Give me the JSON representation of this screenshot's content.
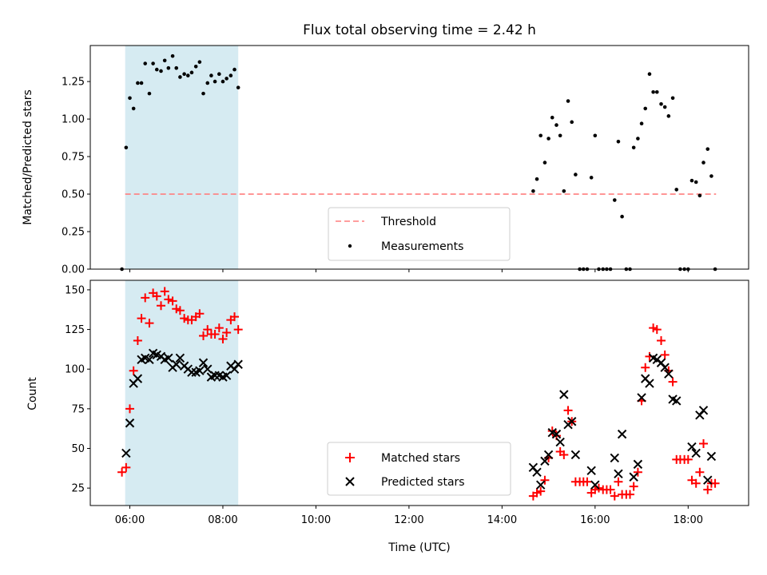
{
  "chart_data": [
    {
      "type": "scatter",
      "title": "Flux total observing time = 2.42 h",
      "xlabel": "",
      "ylabel": "Matched/Predicted stars",
      "xlim_hours": [
        5.15,
        19.3
      ],
      "ylim": [
        0,
        1.49
      ],
      "yticks": [
        0.0,
        0.25,
        0.5,
        0.75,
        1.0,
        1.25
      ],
      "ytick_labels": [
        "0.00",
        "0.25",
        "0.50",
        "0.75",
        "1.00",
        "1.25"
      ],
      "shaded_window_hours": [
        5.9,
        8.33
      ],
      "shaded_color": "#add8e6",
      "threshold": {
        "name": "Threshold",
        "value": 0.5,
        "x_start": 5.9,
        "x_end": 18.6,
        "color": "#ff7f7f"
      },
      "series": [
        {
          "name": "Measurements",
          "marker": "dot",
          "color": "#000000",
          "points": [
            [
              5.83,
              0.0
            ],
            [
              5.92,
              0.81
            ],
            [
              6.0,
              1.14
            ],
            [
              6.08,
              1.07
            ],
            [
              6.17,
              1.24
            ],
            [
              6.25,
              1.24
            ],
            [
              6.33,
              1.37
            ],
            [
              6.42,
              1.17
            ],
            [
              6.5,
              1.37
            ],
            [
              6.58,
              1.33
            ],
            [
              6.67,
              1.32
            ],
            [
              6.75,
              1.39
            ],
            [
              6.83,
              1.34
            ],
            [
              6.92,
              1.42
            ],
            [
              7.0,
              1.34
            ],
            [
              7.08,
              1.28
            ],
            [
              7.17,
              1.3
            ],
            [
              7.25,
              1.29
            ],
            [
              7.33,
              1.31
            ],
            [
              7.42,
              1.35
            ],
            [
              7.5,
              1.38
            ],
            [
              7.58,
              1.17
            ],
            [
              7.67,
              1.24
            ],
            [
              7.75,
              1.29
            ],
            [
              7.83,
              1.25
            ],
            [
              7.92,
              1.3
            ],
            [
              8.0,
              1.25
            ],
            [
              8.08,
              1.27
            ],
            [
              8.17,
              1.29
            ],
            [
              8.25,
              1.33
            ],
            [
              8.33,
              1.21
            ],
            [
              14.67,
              0.52
            ],
            [
              14.75,
              0.6
            ],
            [
              14.83,
              0.89
            ],
            [
              14.92,
              0.71
            ],
            [
              15.0,
              0.87
            ],
            [
              15.08,
              1.01
            ],
            [
              15.17,
              0.96
            ],
            [
              15.25,
              0.89
            ],
            [
              15.33,
              0.52
            ],
            [
              15.42,
              1.12
            ],
            [
              15.5,
              0.98
            ],
            [
              15.58,
              0.63
            ],
            [
              15.67,
              0.0
            ],
            [
              15.75,
              0.0
            ],
            [
              15.83,
              0.0
            ],
            [
              15.92,
              0.61
            ],
            [
              16.0,
              0.89
            ],
            [
              16.08,
              0.0
            ],
            [
              16.17,
              0.0
            ],
            [
              16.25,
              0.0
            ],
            [
              16.33,
              0.0
            ],
            [
              16.42,
              0.46
            ],
            [
              16.5,
              0.85
            ],
            [
              16.58,
              0.35
            ],
            [
              16.67,
              0.0
            ],
            [
              16.75,
              0.0
            ],
            [
              16.83,
              0.81
            ],
            [
              16.92,
              0.87
            ],
            [
              17.0,
              0.97
            ],
            [
              17.08,
              1.07
            ],
            [
              17.17,
              1.3
            ],
            [
              17.25,
              1.18
            ],
            [
              17.33,
              1.18
            ],
            [
              17.42,
              1.1
            ],
            [
              17.5,
              1.08
            ],
            [
              17.58,
              1.02
            ],
            [
              17.67,
              1.14
            ],
            [
              17.75,
              0.53
            ],
            [
              17.83,
              0.0
            ],
            [
              17.92,
              0.0
            ],
            [
              18.0,
              0.0
            ],
            [
              18.08,
              0.59
            ],
            [
              18.17,
              0.58
            ],
            [
              18.25,
              0.49
            ],
            [
              18.33,
              0.71
            ],
            [
              18.42,
              0.8
            ],
            [
              18.5,
              0.62
            ],
            [
              18.58,
              0.0
            ]
          ]
        }
      ],
      "legend": {
        "location": "lower-center",
        "entries": [
          "Threshold",
          "Measurements"
        ]
      }
    },
    {
      "type": "scatter",
      "title": "",
      "xlabel": "Time (UTC)",
      "ylabel": "Count",
      "xlim_hours": [
        5.15,
        19.3
      ],
      "ylim": [
        14,
        156
      ],
      "xticks_hours": [
        6,
        8,
        10,
        12,
        14,
        16,
        18
      ],
      "xtick_labels": [
        "06:00",
        "08:00",
        "10:00",
        "12:00",
        "14:00",
        "16:00",
        "18:00"
      ],
      "yticks": [
        25,
        50,
        75,
        100,
        125,
        150
      ],
      "ytick_labels": [
        "25",
        "50",
        "75",
        "100",
        "125",
        "150"
      ],
      "shaded_window_hours": [
        5.9,
        8.33
      ],
      "shaded_color": "#add8e6",
      "series": [
        {
          "name": "Matched stars",
          "marker": "plus",
          "color": "#ff0000",
          "points": [
            [
              5.83,
              35
            ],
            [
              5.92,
              38
            ],
            [
              6.0,
              75
            ],
            [
              6.08,
              99
            ],
            [
              6.17,
              118
            ],
            [
              6.25,
              132
            ],
            [
              6.33,
              145
            ],
            [
              6.42,
              129
            ],
            [
              6.5,
              148
            ],
            [
              6.58,
              146
            ],
            [
              6.67,
              140
            ],
            [
              6.75,
              149
            ],
            [
              6.83,
              144
            ],
            [
              6.92,
              143
            ],
            [
              7.0,
              138
            ],
            [
              7.08,
              137
            ],
            [
              7.17,
              132
            ],
            [
              7.25,
              131
            ],
            [
              7.33,
              131
            ],
            [
              7.42,
              133
            ],
            [
              7.5,
              135
            ],
            [
              7.58,
              121
            ],
            [
              7.67,
              125
            ],
            [
              7.75,
              122
            ],
            [
              7.83,
              122
            ],
            [
              7.92,
              126
            ],
            [
              8.0,
              119
            ],
            [
              8.08,
              123
            ],
            [
              8.17,
              131
            ],
            [
              8.25,
              133
            ],
            [
              8.33,
              125
            ],
            [
              14.67,
              20
            ],
            [
              14.75,
              22
            ],
            [
              14.83,
              23
            ],
            [
              14.92,
              30
            ],
            [
              15.0,
              44
            ],
            [
              15.08,
              61
            ],
            [
              15.17,
              58
            ],
            [
              15.25,
              48
            ],
            [
              15.33,
              46
            ],
            [
              15.42,
              74
            ],
            [
              15.5,
              67
            ],
            [
              15.58,
              29
            ],
            [
              15.67,
              29
            ],
            [
              15.75,
              29
            ],
            [
              15.83,
              29
            ],
            [
              15.92,
              22
            ],
            [
              16.0,
              24
            ],
            [
              16.08,
              25
            ],
            [
              16.17,
              24
            ],
            [
              16.25,
              24
            ],
            [
              16.33,
              24
            ],
            [
              16.42,
              20
            ],
            [
              16.5,
              29
            ],
            [
              16.58,
              21
            ],
            [
              16.67,
              21
            ],
            [
              16.75,
              21
            ],
            [
              16.83,
              26
            ],
            [
              16.92,
              35
            ],
            [
              17.0,
              80
            ],
            [
              17.08,
              101
            ],
            [
              17.17,
              108
            ],
            [
              17.25,
              126
            ],
            [
              17.33,
              125
            ],
            [
              17.42,
              118
            ],
            [
              17.5,
              109
            ],
            [
              17.58,
              99
            ],
            [
              17.67,
              92
            ],
            [
              17.75,
              43
            ],
            [
              17.83,
              43
            ],
            [
              17.92,
              43
            ],
            [
              18.0,
              43
            ],
            [
              18.08,
              30
            ],
            [
              18.17,
              28
            ],
            [
              18.25,
              35
            ],
            [
              18.33,
              53
            ],
            [
              18.42,
              24
            ],
            [
              18.5,
              28
            ],
            [
              18.58,
              28
            ]
          ]
        },
        {
          "name": "Predicted stars",
          "marker": "x",
          "color": "#000000",
          "points": [
            [
              5.92,
              47
            ],
            [
              6.0,
              66
            ],
            [
              6.08,
              91
            ],
            [
              6.17,
              94
            ],
            [
              6.25,
              106
            ],
            [
              6.33,
              107
            ],
            [
              6.42,
              106
            ],
            [
              6.5,
              110
            ],
            [
              6.58,
              109
            ],
            [
              6.67,
              108
            ],
            [
              6.75,
              106
            ],
            [
              6.83,
              107
            ],
            [
              6.92,
              101
            ],
            [
              7.0,
              103
            ],
            [
              7.08,
              107
            ],
            [
              7.17,
              102
            ],
            [
              7.25,
              100
            ],
            [
              7.33,
              98
            ],
            [
              7.42,
              98
            ],
            [
              7.5,
              99
            ],
            [
              7.58,
              104
            ],
            [
              7.67,
              100
            ],
            [
              7.75,
              95
            ],
            [
              7.83,
              96
            ],
            [
              7.92,
              96
            ],
            [
              8.0,
              95
            ],
            [
              8.08,
              96
            ],
            [
              8.17,
              102
            ],
            [
              8.25,
              100
            ],
            [
              8.33,
              103
            ],
            [
              14.67,
              38
            ],
            [
              14.75,
              35
            ],
            [
              14.83,
              27
            ],
            [
              14.92,
              42
            ],
            [
              15.0,
              46
            ],
            [
              15.08,
              60
            ],
            [
              15.17,
              59
            ],
            [
              15.25,
              54
            ],
            [
              15.33,
              84
            ],
            [
              15.42,
              65
            ],
            [
              15.5,
              67
            ],
            [
              15.58,
              46
            ],
            [
              15.92,
              36
            ],
            [
              16.0,
              27
            ],
            [
              16.42,
              44
            ],
            [
              16.5,
              34
            ],
            [
              16.58,
              59
            ],
            [
              16.83,
              32
            ],
            [
              16.92,
              40
            ],
            [
              17.0,
              82
            ],
            [
              17.08,
              94
            ],
            [
              17.17,
              91
            ],
            [
              17.25,
              107
            ],
            [
              17.33,
              106
            ],
            [
              17.42,
              104
            ],
            [
              17.5,
              101
            ],
            [
              17.58,
              97
            ],
            [
              17.67,
              81
            ],
            [
              17.75,
              80
            ],
            [
              18.08,
              51
            ],
            [
              18.17,
              47
            ],
            [
              18.25,
              71
            ],
            [
              18.33,
              74
            ],
            [
              18.42,
              30
            ],
            [
              18.5,
              45
            ]
          ]
        }
      ],
      "legend": {
        "location": "lower-center",
        "entries": [
          "Matched stars",
          "Predicted stars"
        ]
      }
    }
  ]
}
